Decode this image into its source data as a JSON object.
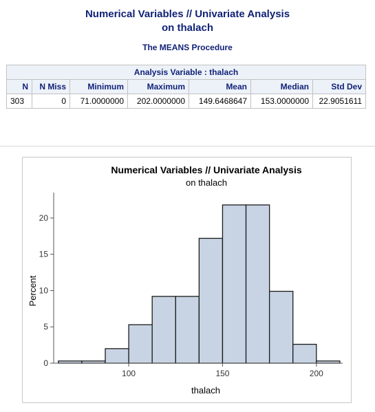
{
  "header": {
    "title_line1": "Numerical Variables // Univariate Analysis",
    "title_line2": "on thalach",
    "procedure": "The MEANS Procedure"
  },
  "means_table": {
    "caption": "Analysis Variable : thalach",
    "columns": [
      "N",
      "N Miss",
      "Minimum",
      "Maximum",
      "Mean",
      "Median",
      "Std Dev"
    ],
    "row": [
      "303",
      "0",
      "71.0000000",
      "202.0000000",
      "149.6468647",
      "153.0000000",
      "22.9051611"
    ]
  },
  "chart_data": {
    "type": "bar",
    "title": "Numerical Variables // Univariate Analysis",
    "subtitle": "on thalach",
    "xlabel": "thalach",
    "ylabel": "Percent",
    "bin_width": 12.5,
    "bins": [
      {
        "start": 62.5,
        "end": 75,
        "value": 0.3
      },
      {
        "start": 75,
        "end": 87.5,
        "value": 0.3
      },
      {
        "start": 87.5,
        "end": 100,
        "value": 2.0
      },
      {
        "start": 100,
        "end": 112.5,
        "value": 5.3
      },
      {
        "start": 112.5,
        "end": 125,
        "value": 9.2
      },
      {
        "start": 125,
        "end": 137.5,
        "value": 9.2
      },
      {
        "start": 137.5,
        "end": 150,
        "value": 17.2
      },
      {
        "start": 150,
        "end": 162.5,
        "value": 21.8
      },
      {
        "start": 162.5,
        "end": 175,
        "value": 21.8
      },
      {
        "start": 175,
        "end": 187.5,
        "value": 9.9
      },
      {
        "start": 187.5,
        "end": 200,
        "value": 2.6
      },
      {
        "start": 200,
        "end": 212.5,
        "value": 0.3
      }
    ],
    "xlim": [
      60,
      214
    ],
    "ylim": [
      0,
      23.5
    ],
    "xticks": [
      100,
      150,
      200
    ],
    "yticks": [
      0,
      5,
      10,
      15,
      20
    ],
    "grid": false,
    "colors": {
      "bar_fill": "#c8d4e4",
      "bar_stroke": "#1a1a1a",
      "title": "#000000"
    }
  }
}
